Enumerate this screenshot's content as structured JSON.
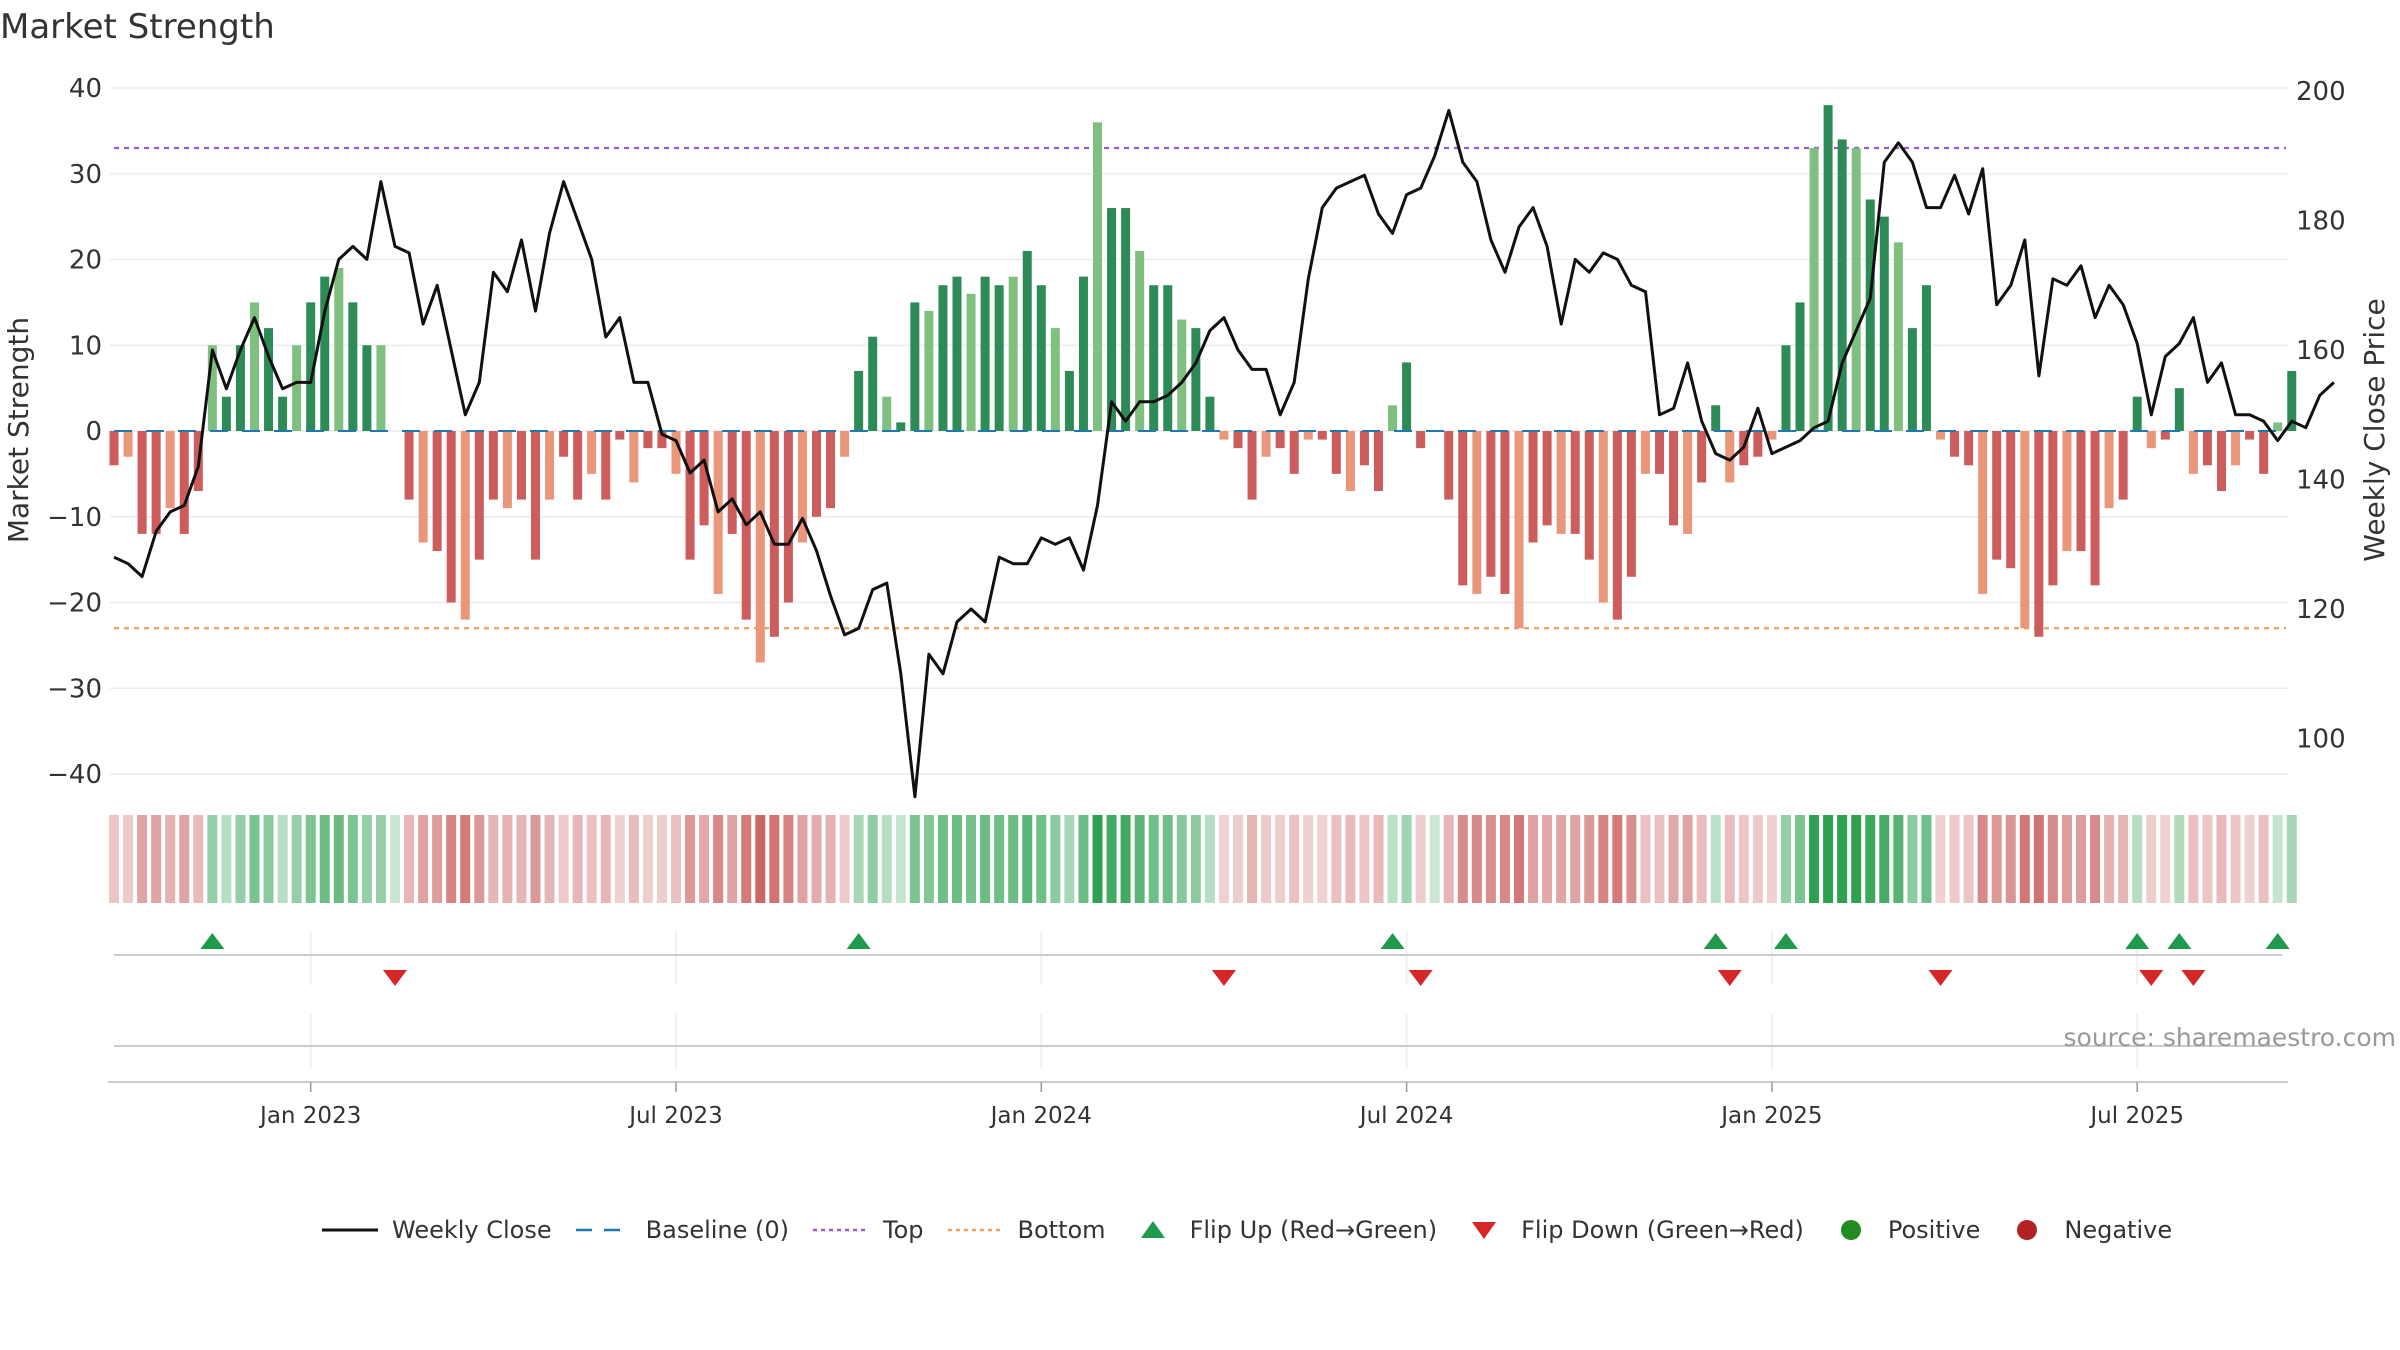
{
  "chart_data": {
    "type": "bar+line",
    "title": "Market Strength",
    "ylabel_left": "Market Strength",
    "ylabel_right": "Weekly Close Price",
    "ylim_left": [
      -40,
      40
    ],
    "ylim_right": [
      90,
      200
    ],
    "yticks_left": [
      "40",
      "30",
      "20",
      "10",
      "0",
      "−10",
      "−20",
      "−30",
      "−40"
    ],
    "yticks_right": [
      "200",
      "180",
      "160",
      "140",
      "120",
      "100"
    ],
    "x_tick_labels": [
      "Jan 2023",
      "Jul 2023",
      "Jan 2024",
      "Jul 2024",
      "Jan 2025",
      "Jul 2025"
    ],
    "x_tick_weeks": [
      14,
      40,
      66,
      92,
      118,
      144
    ],
    "top_line": 33,
    "bottom_line": -23,
    "strength": [
      -4,
      -3,
      -12,
      -12,
      -9,
      -12,
      -7,
      10,
      4,
      10,
      15,
      12,
      4,
      10,
      15,
      18,
      19,
      15,
      10,
      10,
      0,
      -8,
      -13,
      -14,
      -20,
      -22,
      -15,
      -8,
      -9,
      -8,
      -15,
      -8,
      -3,
      -8,
      -5,
      -8,
      -1,
      -6,
      -2,
      -2,
      -5,
      -15,
      -11,
      -19,
      -12,
      -22,
      -27,
      -24,
      -20,
      -13,
      -10,
      -9,
      -3,
      7,
      11,
      4,
      1,
      15,
      14,
      17,
      18,
      16,
      18,
      17,
      18,
      21,
      17,
      12,
      7,
      18,
      36,
      26,
      26,
      21,
      17,
      17,
      13,
      12,
      4,
      -1,
      -2,
      -8,
      -3,
      -2,
      -5,
      -1,
      -1,
      -5,
      -7,
      -4,
      -7,
      3,
      8,
      -2,
      0,
      -8,
      -18,
      -19,
      -17,
      -19,
      -23,
      -13,
      -11,
      -12,
      -12,
      -15,
      -20,
      -22,
      -17,
      -5,
      -5,
      -11,
      -12,
      -6,
      3,
      -6,
      -4,
      -3,
      -1,
      10,
      15,
      33,
      38,
      34,
      33,
      27,
      25,
      22,
      12,
      17,
      -1,
      -3,
      -4,
      -19,
      -15,
      -16,
      -23,
      -24,
      -18,
      -14,
      -14,
      -18,
      -9,
      -8,
      4,
      -2,
      -1,
      5,
      -5,
      -4,
      -7,
      -4,
      -1,
      -5,
      1,
      7
    ],
    "weekly_close": [
      128,
      127,
      125,
      132,
      135,
      136,
      142,
      160,
      154,
      160,
      165,
      159,
      154,
      155,
      155,
      166,
      174,
      176,
      174,
      186,
      176,
      175,
      164,
      170,
      160,
      150,
      155,
      172,
      169,
      177,
      166,
      178,
      186,
      180,
      174,
      162,
      165,
      155,
      155,
      147,
      146,
      141,
      143,
      135,
      137,
      133,
      135,
      130,
      130,
      134,
      129,
      122,
      116,
      117,
      123,
      124,
      110,
      91,
      113,
      110,
      118,
      120,
      118,
      128,
      127,
      127,
      131,
      130,
      131,
      126,
      136,
      152,
      149,
      152,
      152,
      153,
      155,
      158,
      163,
      165,
      160,
      157,
      157,
      150,
      155,
      171,
      182,
      185,
      186,
      187,
      181,
      178,
      184,
      185,
      190,
      197,
      189,
      186,
      177,
      172,
      179,
      182,
      176,
      164,
      174,
      172,
      175,
      174,
      170,
      169,
      150,
      151,
      158,
      149,
      144,
      143,
      145,
      151,
      144,
      145,
      146,
      148,
      149,
      158,
      163,
      168,
      189,
      192,
      189,
      182,
      182,
      187,
      181,
      188,
      167,
      170,
      177,
      156,
      171,
      170,
      173,
      165,
      170,
      167,
      161,
      150,
      159,
      161,
      165,
      155,
      158,
      150,
      150,
      149,
      146,
      149,
      148,
      153,
      155
    ]
  },
  "legend": {
    "weekly_close": "Weekly Close",
    "baseline": "Baseline (0)",
    "top": "Top",
    "bottom": "Bottom",
    "flip_up": "Flip Up (Red→Green)",
    "flip_down": "Flip Down (Green→Red)",
    "positive": "Positive",
    "negative": "Negative"
  },
  "source": "source: sharemaestro.com",
  "colors": {
    "pos_strong": "#2e8b57",
    "pos_light": "#7fbf7f",
    "neg_strong": "#cd5c5c",
    "neg_light": "#e9967a",
    "price_line": "#111111",
    "top_line": "#9b59d0",
    "bottom_line": "#e8a15a",
    "baseline": "#1f77b4",
    "flip_up": "#1e9a4a",
    "flip_down": "#d62728",
    "positive_dot": "#228b22",
    "negative_dot": "#b22222"
  }
}
